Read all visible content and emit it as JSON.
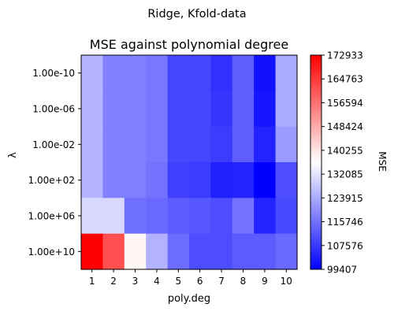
{
  "chart_data": {
    "type": "heatmap",
    "suptitle": "Ridge, Kfold-data",
    "title": "MSE against polynomial degree",
    "xlabel": "poly.deg",
    "ylabel": "λ",
    "x": [
      "1",
      "2",
      "3",
      "4",
      "5",
      "6",
      "7",
      "8",
      "9",
      "10"
    ],
    "y": [
      "1.00e-10",
      "1.00e-06",
      "1.00e-02",
      "1.00e+02",
      "1.00e+06",
      "1.00e+10"
    ],
    "values": [
      [
        125500,
        118000,
        117800,
        116500,
        109500,
        109500,
        106500,
        113000,
        101800,
        123900
      ],
      [
        125500,
        118000,
        117800,
        116500,
        109500,
        109500,
        107000,
        113000,
        102500,
        123900
      ],
      [
        125500,
        118000,
        117800,
        116500,
        109500,
        109500,
        108000,
        113000,
        104500,
        121800
      ],
      [
        125500,
        118000,
        117800,
        115800,
        108500,
        108000,
        104000,
        104500,
        99407,
        110500
      ],
      [
        130500,
        130500,
        115500,
        114500,
        112500,
        112000,
        110500,
        116000,
        104500,
        110000
      ],
      [
        172933,
        161500,
        137500,
        125000,
        115000,
        110500,
        110500,
        112500,
        112500,
        114500
      ]
    ],
    "colormap": "bwr",
    "colorbar": {
      "label": "MSE",
      "min": 99407,
      "max": 172933,
      "ticks": [
        "172933",
        "164763",
        "156594",
        "148424",
        "140255",
        "132085",
        "123915",
        "115746",
        "107576",
        "99407"
      ]
    }
  }
}
